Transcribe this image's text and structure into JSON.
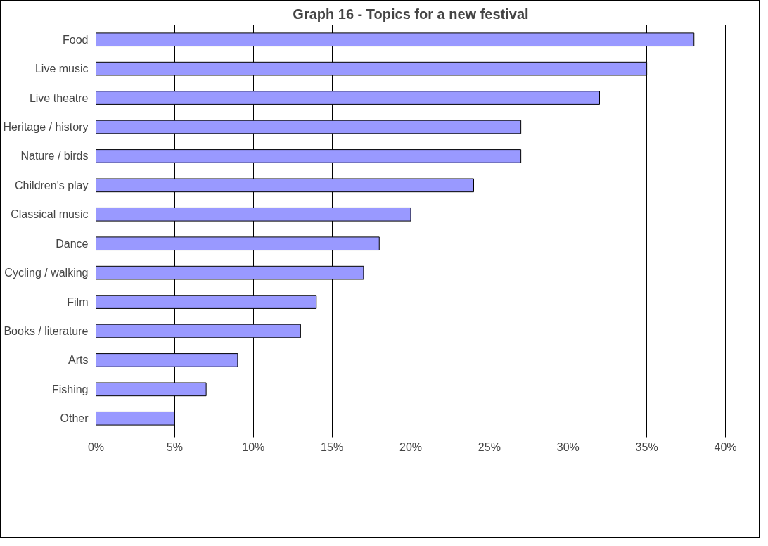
{
  "chart_data": {
    "type": "bar",
    "orientation": "horizontal",
    "title": "Graph 16 - Topics for a new festival",
    "categories": [
      "Food",
      "Live music",
      "Live theatre",
      "Heritage / history",
      "Nature / birds",
      "Children's play",
      "Classical music",
      "Dance",
      "Cycling / walking",
      "Film",
      "Books / literature",
      "Arts",
      "Fishing",
      "Other"
    ],
    "values": [
      38,
      35,
      32,
      27,
      27,
      24,
      20,
      18,
      17,
      14,
      13,
      9,
      7,
      5
    ],
    "color": "#9999ff",
    "xlim": [
      0,
      40
    ],
    "xticks": [
      {
        "value": 0,
        "label": "0%"
      },
      {
        "value": 5,
        "label": "5%"
      },
      {
        "value": 10,
        "label": "10%"
      },
      {
        "value": 15,
        "label": "15%"
      },
      {
        "value": 20,
        "label": "20%"
      },
      {
        "value": 25,
        "label": "25%"
      },
      {
        "value": 30,
        "label": "30%"
      },
      {
        "value": 35,
        "label": "35%"
      },
      {
        "value": 40,
        "label": "40%"
      }
    ],
    "grid": "x"
  }
}
